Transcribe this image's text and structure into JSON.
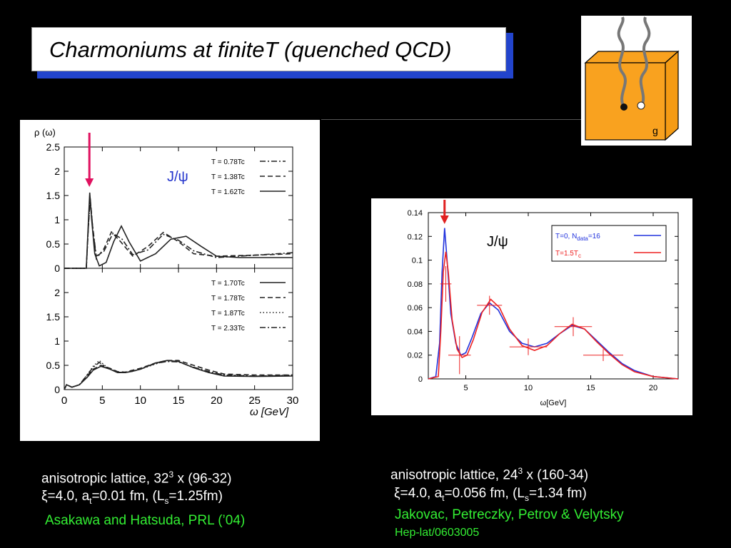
{
  "slide": {
    "title": "Charmoniums at finiteT (quenched QCD)",
    "box_label": "g",
    "colors": {
      "title_shadow": "#2244cc",
      "accent_green": "#33ee33",
      "cube": "#f9a21f",
      "arrow": "#e0115f"
    }
  },
  "captions": {
    "left_line1_a": "anisotropic lattice, 32",
    "left_line1_sup": "3",
    "left_line1_b": " x (96-32)",
    "left_line2_xi": "ξ",
    "left_line2_a": "=4.0, a",
    "left_line2_sub1": "t",
    "left_line2_b": "=0.01 fm, (L",
    "left_line2_sub2": "s",
    "left_line2_c": "=1.25fm)",
    "left_ref": "Asakawa and Hatsuda, PRL (’04)",
    "right_line1_a": "anisotropic lattice, 24",
    "right_line1_sup": "3",
    "right_line1_b": " x (160-34)",
    "right_line2_xi": "ξ",
    "right_line2_a": "=4.0, a",
    "right_line2_sub1": "t",
    "right_line2_b": "=0.056 fm, (L",
    "right_line2_sub2": "s",
    "right_line2_c": "=1.34 fm)",
    "right_ref1": "Jakovac, Petreczky, Petrov & Velytsky",
    "right_ref2": "Hep-lat/0603005"
  },
  "chart_data": [
    {
      "type": "line",
      "ylabel": "ρ (ω)",
      "xlabel": "ω [GeV]",
      "annotation": "J/ψ",
      "xlim": [
        0,
        30
      ],
      "xticks": [
        0,
        5,
        10,
        15,
        20,
        25,
        30
      ],
      "panels": [
        {
          "ylim": [
            0,
            2.5
          ],
          "yticks": [
            "0",
            "0.5",
            "1",
            "1.5",
            "2",
            "2.5"
          ],
          "series": [
            {
              "name": "T = 0.78Tc",
              "style": "dashdot",
              "x": [
                0,
                2.9,
                3.15,
                3.4,
                3.7,
                4.2,
                5.2,
                6.4,
                7.6,
                9,
                11,
                13,
                15,
                17,
                20,
                25,
                30
              ],
              "y": [
                0,
                0,
                0.8,
                1.45,
                0.9,
                0.25,
                0.35,
                0.72,
                0.6,
                0.28,
                0.38,
                0.7,
                0.58,
                0.36,
                0.22,
                0.27,
                0.32
              ]
            },
            {
              "name": "T = 1.38Tc",
              "style": "dashed",
              "x": [
                0,
                2.9,
                3.15,
                3.4,
                3.7,
                4.2,
                5.2,
                6.2,
                7.4,
                9,
                11,
                13,
                15,
                17,
                20,
                25,
                30
              ],
              "y": [
                0,
                0,
                0.8,
                1.45,
                0.9,
                0.2,
                0.4,
                0.75,
                0.55,
                0.25,
                0.45,
                0.74,
                0.55,
                0.3,
                0.25,
                0.27,
                0.3
              ]
            },
            {
              "name": "T = 1.62Tc",
              "style": "solid",
              "x": [
                0,
                2.9,
                3.15,
                3.35,
                3.6,
                4.0,
                4.6,
                5.5,
                6.5,
                7.5,
                8.5,
                10,
                12,
                14,
                16,
                18,
                20,
                23,
                26,
                30
              ],
              "y": [
                0,
                0,
                0.9,
                1.56,
                1.0,
                0.3,
                0.05,
                0.12,
                0.55,
                0.87,
                0.55,
                0.15,
                0.3,
                0.6,
                0.66,
                0.45,
                0.25,
                0.22,
                0.22,
                0.22
              ]
            }
          ]
        },
        {
          "ylim": [
            0,
            2.5
          ],
          "yticks": [
            "0",
            "0.5",
            "1",
            "1.5",
            "2"
          ],
          "series": [
            {
              "name": "T = 1.70Tc",
              "style": "solid",
              "x": [
                0,
                0.3,
                1,
                2,
                3,
                3.8,
                4.8,
                6,
                7,
                8,
                9,
                10,
                12,
                13.5,
                15,
                17,
                19,
                21,
                25,
                30
              ],
              "y": [
                0,
                0.1,
                0.05,
                0.1,
                0.25,
                0.4,
                0.48,
                0.42,
                0.35,
                0.35,
                0.38,
                0.42,
                0.55,
                0.6,
                0.58,
                0.45,
                0.35,
                0.28,
                0.27,
                0.28
              ]
            },
            {
              "name": "T = 1.78Tc",
              "style": "dashed",
              "x": [
                0,
                0.3,
                1,
                2,
                3,
                3.8,
                4.8,
                6,
                7,
                8,
                9,
                10,
                12,
                13.5,
                15,
                17,
                19,
                21,
                25,
                30
              ],
              "y": [
                0,
                0.1,
                0.05,
                0.1,
                0.28,
                0.42,
                0.5,
                0.44,
                0.37,
                0.36,
                0.4,
                0.44,
                0.55,
                0.6,
                0.6,
                0.5,
                0.4,
                0.32,
                0.3,
                0.3
              ]
            },
            {
              "name": "T = 1.87Tc",
              "style": "dotted",
              "x": [
                0,
                0.3,
                1,
                2,
                3,
                3.8,
                4.6,
                5.5,
                7,
                8,
                9,
                10,
                12,
                13.5,
                15,
                17,
                19,
                21,
                25,
                30
              ],
              "y": [
                0,
                0.1,
                0.05,
                0.1,
                0.3,
                0.48,
                0.6,
                0.47,
                0.35,
                0.35,
                0.38,
                0.42,
                0.53,
                0.6,
                0.58,
                0.45,
                0.35,
                0.3,
                0.28,
                0.3
              ]
            },
            {
              "name": "T = 2.33Tc",
              "style": "dashdot",
              "x": [
                0,
                0.3,
                1,
                2,
                3,
                3.8,
                4.6,
                5.5,
                7,
                8,
                9,
                10,
                12,
                13.5,
                15,
                17,
                19,
                21,
                25,
                30
              ],
              "y": [
                0,
                0.1,
                0.05,
                0.1,
                0.3,
                0.46,
                0.56,
                0.46,
                0.36,
                0.35,
                0.38,
                0.42,
                0.54,
                0.58,
                0.57,
                0.46,
                0.37,
                0.3,
                0.28,
                0.29
              ]
            }
          ]
        }
      ]
    },
    {
      "type": "line",
      "xlabel": "ω[GeV]",
      "annotation": "J/ψ",
      "xlim": [
        2,
        22
      ],
      "ylim": [
        0,
        0.14
      ],
      "xticks": [
        5,
        10,
        15,
        20
      ],
      "yticks": [
        "0",
        "0.02",
        "0.04",
        "0.06",
        "0.08",
        "0.1",
        "0.12",
        "0.14"
      ],
      "series": [
        {
          "name_main": "T=0, N",
          "name_sub": "data",
          "name_tail": "=16",
          "color": "#2233dd",
          "x": [
            2,
            2.6,
            2.9,
            3.1,
            3.3,
            3.5,
            3.8,
            4.2,
            4.6,
            5.0,
            5.5,
            6.2,
            6.9,
            7.6,
            8.5,
            9.5,
            10.5,
            11.5,
            12.5,
            13.5,
            14.5,
            15.5,
            16.5,
            17.5,
            18.5,
            20,
            22
          ],
          "y": [
            0,
            0.002,
            0.03,
            0.09,
            0.127,
            0.1,
            0.055,
            0.03,
            0.02,
            0.022,
            0.035,
            0.055,
            0.064,
            0.058,
            0.04,
            0.03,
            0.027,
            0.03,
            0.038,
            0.045,
            0.042,
            0.032,
            0.022,
            0.013,
            0.007,
            0.002,
            0
          ]
        },
        {
          "name_main": "T=1.5T",
          "name_sub": "c",
          "name_tail": "",
          "color": "#ee2222",
          "x": [
            2,
            2.8,
            3.0,
            3.2,
            3.4,
            3.6,
            3.9,
            4.3,
            4.7,
            5.1,
            5.6,
            6.3,
            7.0,
            7.7,
            8.5,
            9.5,
            10.5,
            11.5,
            12.5,
            13.5,
            14.5,
            15.5,
            16.5,
            17.5,
            18.5,
            20,
            22
          ],
          "y": [
            0,
            0.002,
            0.04,
            0.09,
            0.107,
            0.09,
            0.05,
            0.025,
            0.018,
            0.02,
            0.033,
            0.056,
            0.067,
            0.06,
            0.042,
            0.028,
            0.024,
            0.028,
            0.038,
            0.046,
            0.042,
            0.031,
            0.021,
            0.012,
            0.006,
            0.002,
            0
          ]
        }
      ],
      "data_points": [
        {
          "x": 3.4,
          "y": 0.08,
          "xerr": 0.45,
          "yerr": 0.015
        },
        {
          "x": 4.5,
          "y": 0.02,
          "xerr": 0.9,
          "yerr": 0.016
        },
        {
          "x": 6.9,
          "y": 0.062,
          "xerr": 1.0,
          "yerr": 0.008
        },
        {
          "x": 10.0,
          "y": 0.027,
          "xerr": 1.5,
          "yerr": 0.007
        },
        {
          "x": 13.6,
          "y": 0.044,
          "xerr": 1.5,
          "yerr": 0.008
        },
        {
          "x": 16.0,
          "y": 0.02,
          "xerr": 1.6,
          "yerr": 0.005
        }
      ]
    }
  ]
}
